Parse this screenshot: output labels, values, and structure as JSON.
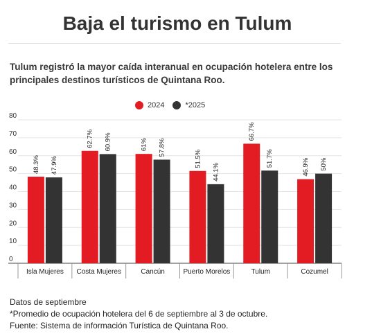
{
  "chart_data": {
    "type": "bar",
    "title": "Baja el turismo en Tulum",
    "subtitle": "Tulum registró la mayor caída interanual en ocupación hotelera entre los principales destinos turísticos de Quintana Roo.",
    "categories": [
      "Isla Mujeres",
      "Costa Mujeres",
      "Cancún",
      "Puerto Morelos",
      "Tulum",
      "Cozumel"
    ],
    "series": [
      {
        "name": "2024",
        "color": "#e31c23",
        "values": [
          48.3,
          62.7,
          61,
          51.5,
          66.7,
          46.9
        ],
        "labels": [
          "48.3%",
          "62.7%",
          "61%",
          "51.5%",
          "66.7%",
          "46.9%"
        ]
      },
      {
        "name": "*2025",
        "color": "#333333",
        "values": [
          47.9,
          60.9,
          57.8,
          44.1,
          51.7,
          50
        ],
        "labels": [
          "47.9%",
          "60.9%",
          "57.8%",
          "44.1%",
          "51.7%",
          "50%"
        ]
      }
    ],
    "yticks": [
      "0",
      "10",
      "20",
      "30",
      "40",
      "50",
      "60",
      "70",
      "80"
    ],
    "ylim": [
      0,
      80
    ],
    "grid": true,
    "legend_position": "top-center",
    "xlabel": "",
    "ylabel": ""
  },
  "notes": [
    "Datos de septiembre",
    "*Promedio de ocupación hotelera del 6 de septiembre al 3 de octubre.",
    "Fuente: Sistema de información Turística de Quintana Roo."
  ]
}
